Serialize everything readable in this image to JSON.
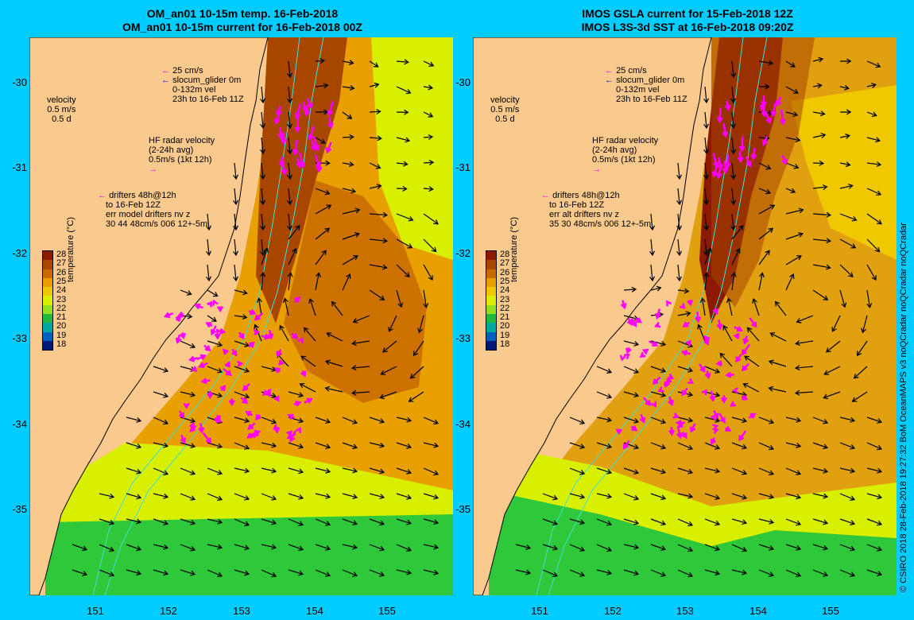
{
  "titles": {
    "left": [
      "OM_an01 10-15m temp. 16-Feb-2018",
      "OM_an01 10-15m current for 16-Feb-2018 00Z"
    ],
    "right": [
      "IMOS GSLA current for 15-Feb-2018 12Z",
      "IMOS L3S-3d SST at 16-Feb-2018 09:20Z"
    ]
  },
  "legend_left": {
    "current": [
      "25 cm/s",
      "slocum_glider 0m",
      "0-132m vel",
      "23h to 16-Feb 11Z"
    ],
    "velocity": [
      "velocity",
      "0.5 m/s",
      "0.5 d"
    ],
    "hf_radar": [
      "HF radar velocity",
      "(2-24h avg)",
      "0.5m/s (1kt 12h)"
    ],
    "drifters": [
      "drifters 48h@12h",
      "to 16-Feb 12Z",
      "err model drifters nv z",
      "30 44 48cm/s 006 12+-5m"
    ]
  },
  "legend_right": {
    "current": [
      "25 cm/s",
      "slocum_glider 0m",
      "0-132m vel",
      "23h to 16-Feb 11Z"
    ],
    "velocity": [
      "velocity",
      "0.5 m/s",
      "0.5 d"
    ],
    "hf_radar": [
      "HF radar velocity",
      "(2-24h avg)",
      "0.5m/s (1kt 12h)"
    ],
    "drifters": [
      "drifters 48h@12h",
      "to 16-Feb 12Z",
      "err alt drifters nv z",
      "35 30 48cm/s 006 12+-5m"
    ]
  },
  "colorbar": {
    "title": "temperature (°C)",
    "labels": [
      "28",
      "27",
      "26",
      "25",
      "24",
      "23",
      "22",
      "21",
      "20",
      "19",
      "18"
    ],
    "colors": [
      "#8b1a00",
      "#a84600",
      "#c86a00",
      "#e8a000",
      "#f0c800",
      "#d8f000",
      "#90e020",
      "#20b840",
      "#00a8a0",
      "#0060c0",
      "#001878"
    ]
  },
  "axes": {
    "x_ticks": [
      "151",
      "152",
      "153",
      "154",
      "155"
    ],
    "y_ticks": [
      "-30",
      "-31",
      "-32",
      "-33",
      "-34",
      "-35"
    ]
  },
  "credit": "© CSIRO 2018   28-Feb-2018 19:27:32 BoM OceanMAPS v3 noQCradar noQCradar noQCradar",
  "colors": {
    "background": "#00ccff",
    "land": "#f9c98e",
    "arrow": "#000000",
    "radar": "#ff00ff",
    "glider": "#0000ff",
    "isobath": "#40e0d0"
  },
  "icons": [
    "magenta-arrow-icon",
    "blue-arrow-icon",
    "black-arrow-icon"
  ]
}
